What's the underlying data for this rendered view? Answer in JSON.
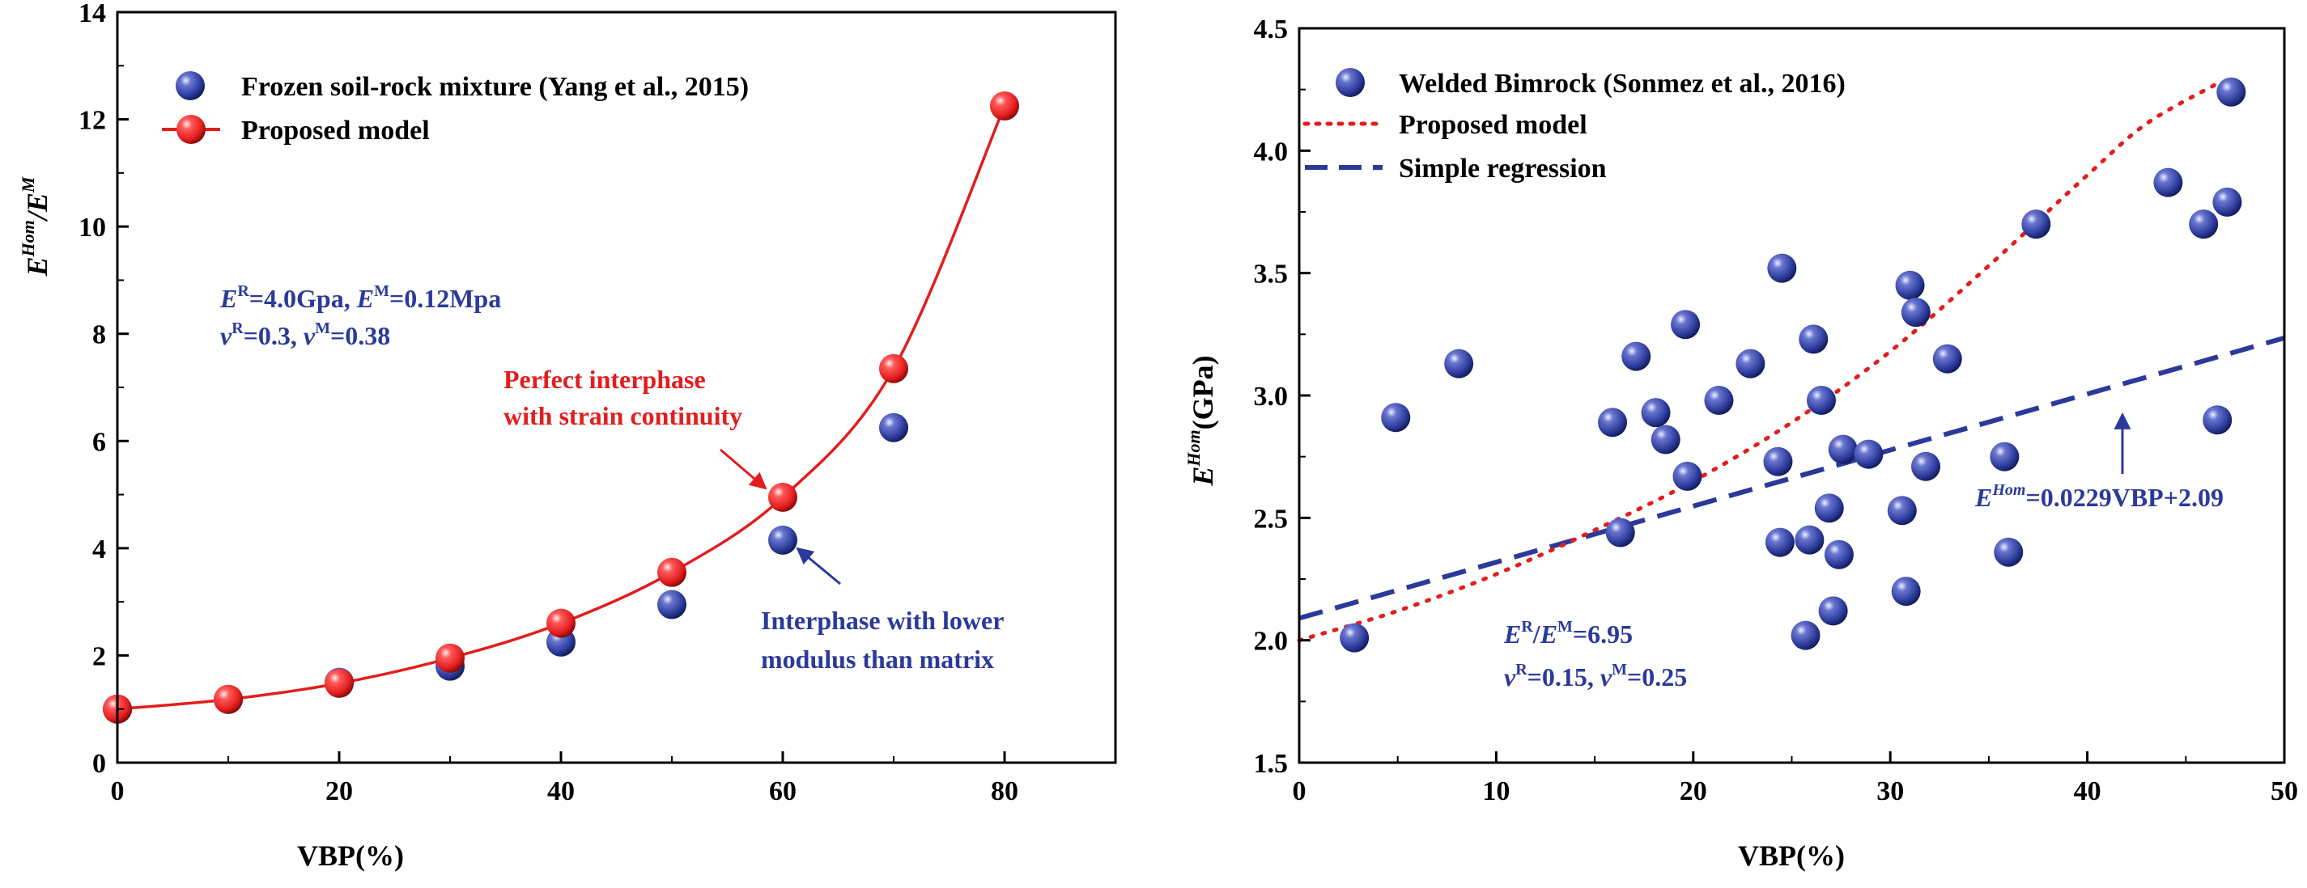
{
  "colors": {
    "red": "#e31d1d",
    "blue": "#2b3a9a",
    "blue_dark": "#1b2470",
    "axis": "#000000"
  },
  "chart_data": [
    {
      "type": "scatter",
      "xlabel": "VBP(%)",
      "ylabel": "E^Hom/E^M",
      "ylabel_parts": {
        "base": "E",
        "sup1": "Hom",
        "mid": "/E",
        "sup2": "M"
      },
      "xlim": [
        0,
        90
      ],
      "ylim": [
        0,
        14
      ],
      "xticks": [
        0,
        20,
        40,
        60,
        80
      ],
      "yticks": [
        0,
        2,
        4,
        6,
        8,
        10,
        12,
        14
      ],
      "legend_position": "top-left",
      "series": [
        {
          "name": "Frozen soil-rock mixture (Yang et al., 2015)",
          "marker": "blue-sphere",
          "x": [
            0,
            10,
            20,
            30,
            40,
            50,
            60,
            70
          ],
          "y": [
            1.0,
            1.18,
            1.5,
            1.8,
            2.25,
            2.95,
            4.15,
            6.25
          ]
        },
        {
          "name": "Proposed model",
          "marker": "red-sphere-line",
          "x": [
            0,
            10,
            20,
            30,
            40,
            50,
            60,
            70,
            80
          ],
          "y": [
            1.0,
            1.18,
            1.48,
            1.95,
            2.6,
            3.55,
            4.95,
            7.35,
            12.25
          ]
        }
      ],
      "annotations": {
        "params_line1": {
          "E1": "E",
          "s1": "R",
          "t1": "=4.0Gpa, ",
          "E2": "E",
          "s2": "M",
          "t2": "=0.12Mpa"
        },
        "params_line2": {
          "v1": "v",
          "s1": "R",
          "t1": "=0.3, ",
          "v2": "v",
          "s2": "M",
          "t2": "=0.38"
        },
        "perfect_line1": "Perfect interphase",
        "perfect_line2": "with strain continuity",
        "lower_line1": "Interphase with lower",
        "lower_line2": "modulus than matrix"
      }
    },
    {
      "type": "scatter",
      "xlabel": "VBP(%)",
      "ylabel": "E^Hom(GPa)",
      "ylabel_parts": {
        "base": "E",
        "sup": "Hom",
        "rest": "(GPa)"
      },
      "xlim": [
        0,
        50
      ],
      "ylim": [
        1.5,
        4.5
      ],
      "xticks": [
        0,
        10,
        20,
        30,
        40,
        50
      ],
      "yticks": [
        1.5,
        2.0,
        2.5,
        3.0,
        3.5,
        4.0,
        4.5
      ],
      "ytick_labels": [
        "1.5",
        "2.0",
        "2.5",
        "3.0",
        "3.5",
        "4.0",
        "4.5"
      ],
      "legend_position": "top-left",
      "series": [
        {
          "name": "Welded Bimrock (Sonmez et al., 2016)",
          "marker": "blue-sphere",
          "points": [
            [
              2.8,
              2.01
            ],
            [
              4.9,
              2.91
            ],
            [
              8.1,
              3.13
            ],
            [
              15.9,
              2.89
            ],
            [
              16.3,
              2.44
            ],
            [
              17.1,
              3.16
            ],
            [
              18.1,
              2.93
            ],
            [
              18.6,
              2.82
            ],
            [
              19.6,
              3.29
            ],
            [
              19.7,
              2.67
            ],
            [
              21.3,
              2.98
            ],
            [
              22.9,
              3.13
            ],
            [
              24.3,
              2.73
            ],
            [
              24.4,
              2.4
            ],
            [
              24.5,
              3.52
            ],
            [
              25.7,
              2.02
            ],
            [
              25.9,
              2.41
            ],
            [
              26.1,
              3.23
            ],
            [
              26.5,
              2.98
            ],
            [
              26.9,
              2.54
            ],
            [
              27.1,
              2.12
            ],
            [
              27.4,
              2.35
            ],
            [
              27.6,
              2.78
            ],
            [
              28.9,
              2.76
            ],
            [
              30.6,
              2.53
            ],
            [
              30.8,
              2.2
            ],
            [
              31.0,
              3.45
            ],
            [
              31.3,
              3.34
            ],
            [
              31.8,
              2.71
            ],
            [
              32.9,
              3.15
            ],
            [
              35.8,
              2.75
            ],
            [
              36.0,
              2.36
            ],
            [
              37.4,
              3.7
            ],
            [
              44.1,
              3.87
            ],
            [
              45.9,
              3.7
            ],
            [
              46.6,
              2.9
            ],
            [
              47.1,
              3.79
            ],
            [
              47.3,
              4.24
            ]
          ]
        },
        {
          "name": "Proposed model",
          "line": "red-dotted",
          "x": [
            0,
            5,
            10,
            15,
            20,
            25,
            30,
            35,
            40,
            43,
            46.5
          ],
          "y": [
            2.0,
            2.12,
            2.27,
            2.45,
            2.65,
            2.89,
            3.18,
            3.53,
            3.9,
            4.11,
            4.27
          ]
        },
        {
          "name": "Simple regression",
          "line": "blue-dashed",
          "slope": 0.0229,
          "intercept": 2.09,
          "x": [
            0,
            50
          ]
        }
      ],
      "annotations": {
        "regression": {
          "E": "E",
          "sup": "Hom",
          "rest": "=0.0229VBP+2.09"
        },
        "ratio_line": {
          "E1": "E",
          "s1": "R",
          "t1": "/",
          "E2": "E",
          "s2": "M",
          "t2": "=6.95"
        },
        "poisson_line": {
          "v1": "v",
          "s1": "R",
          "t1": "=0.15, ",
          "v2": "v",
          "s2": "M",
          "t2": "=0.25"
        }
      }
    }
  ]
}
